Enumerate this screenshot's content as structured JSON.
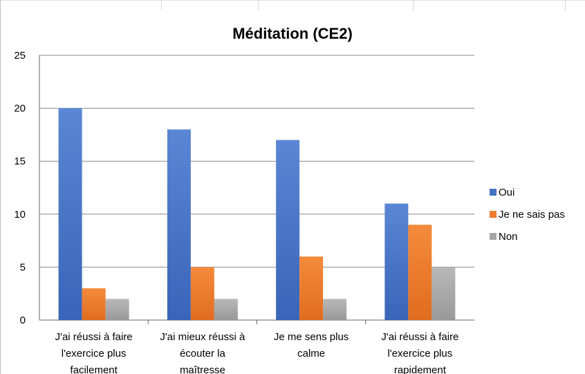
{
  "chart_data": {
    "type": "bar",
    "title": "Méditation (CE2)",
    "categories": [
      [
        "J'ai réussi à faire",
        "l'exercice plus",
        "facilement"
      ],
      [
        "J'ai mieux réussi à",
        "écouter la",
        "maîtresse"
      ],
      [
        "Je me sens plus",
        "calme"
      ],
      [
        "J'ai réussi à faire",
        "l'exercice plus",
        "rapidement"
      ]
    ],
    "series": [
      {
        "name": "Oui",
        "color": "#4472c4",
        "values": [
          20,
          18,
          17,
          11
        ]
      },
      {
        "name": "Je ne sais pas",
        "color": "#ed7d31",
        "values": [
          3,
          5,
          6,
          9
        ]
      },
      {
        "name": "Non",
        "color": "#a5a5a5",
        "values": [
          2,
          2,
          2,
          5
        ]
      }
    ],
    "ylim": [
      0,
      25
    ],
    "yticks": [
      0,
      5,
      10,
      15,
      20,
      25
    ],
    "grid": true,
    "legend": "right"
  }
}
